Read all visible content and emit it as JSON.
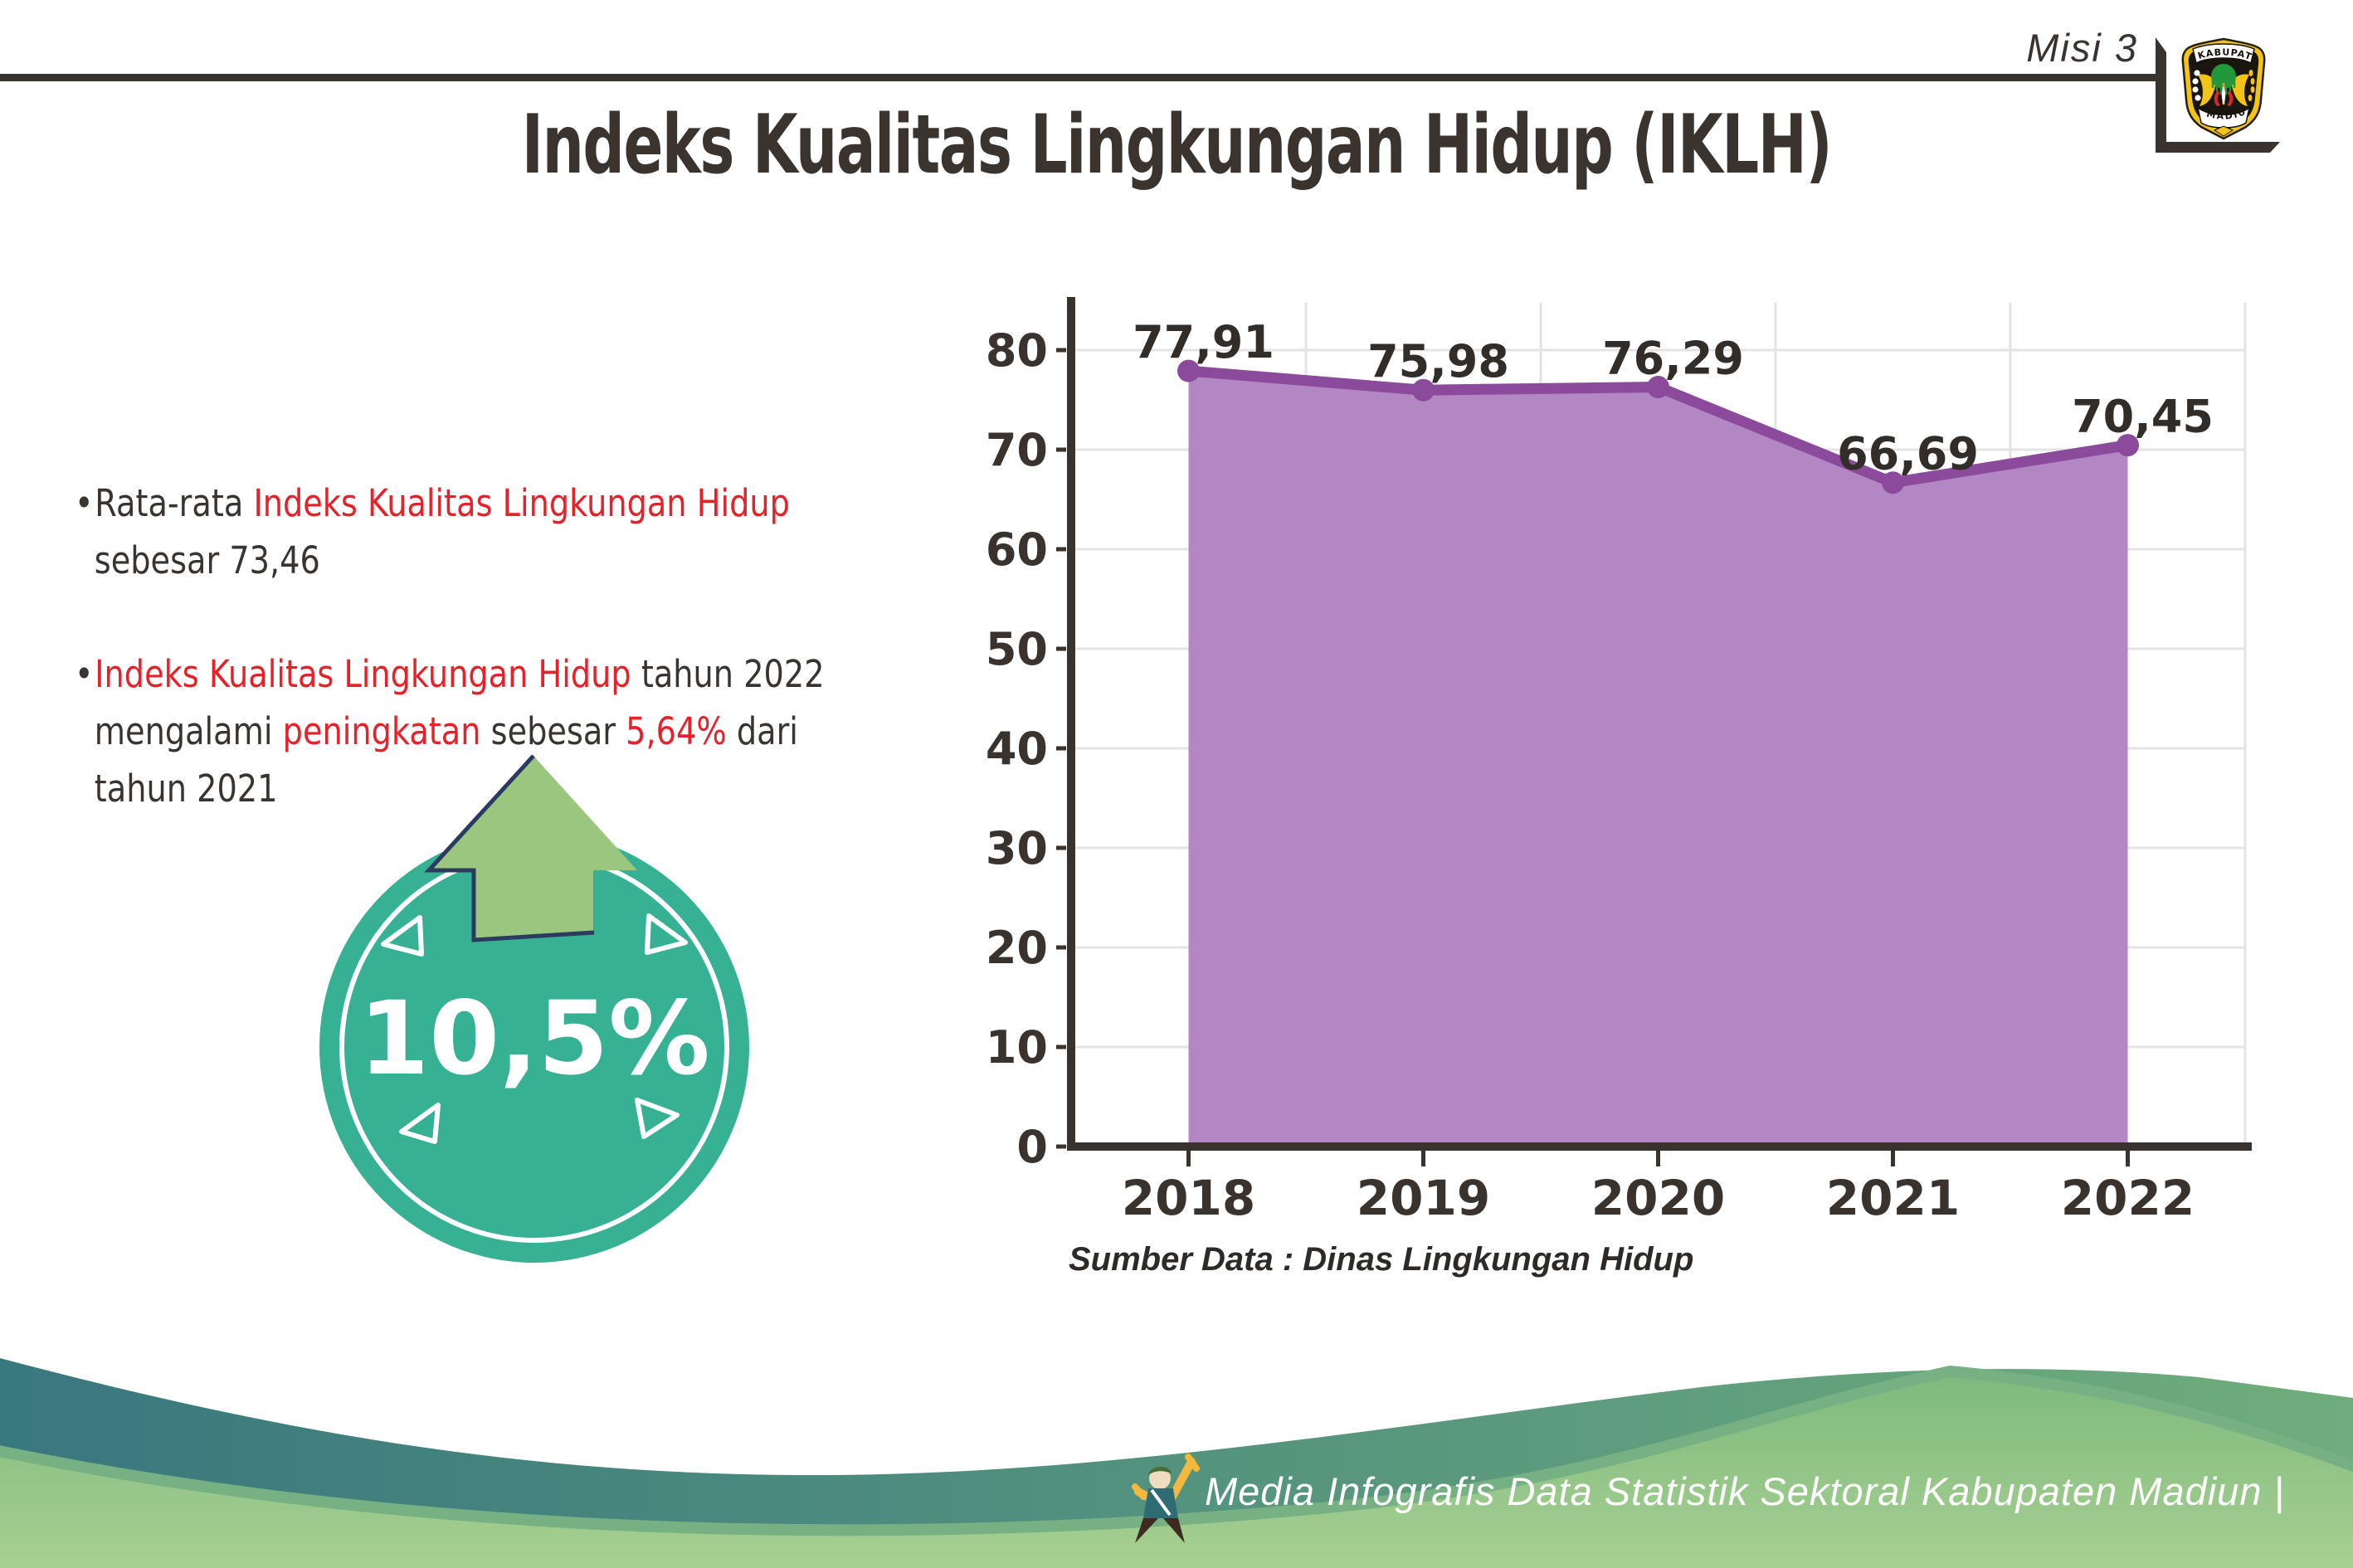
{
  "page": {
    "misi_label": "Misi 3"
  },
  "logo": {
    "top_text": "KABUPATEN",
    "bottom_text": "MADIUN"
  },
  "title": "Indeks Kualitas Lingkungan Hidup (IKLH)",
  "bullet_char": "•",
  "bullets": [
    {
      "lines": [
        [
          {
            "text": "Rata-rata ",
            "red": false
          },
          {
            "text": "Indeks Kualitas Lingkungan Hidup",
            "red": true
          }
        ],
        [
          {
            "text": "sebesar 73,46",
            "red": false
          }
        ]
      ]
    },
    {
      "lines": [
        [
          {
            "text": "Indeks Kualitas Lingkungan Hidup",
            "red": true
          },
          {
            "text": " tahun 2022",
            "red": false
          }
        ],
        [
          {
            "text": "mengalami ",
            "red": false
          },
          {
            "text": "peningkatan",
            "red": true
          },
          {
            "text": " sebesar ",
            "red": false
          },
          {
            "text": "5,64%",
            "red": true
          },
          {
            "text": " dari",
            "red": false
          }
        ],
        [
          {
            "text": "tahun 2021",
            "red": false
          }
        ]
      ]
    }
  ],
  "badge": {
    "value": "10,5%",
    "arrow": "up"
  },
  "chart_data": {
    "type": "area",
    "title": "",
    "categories": [
      "2018",
      "2019",
      "2020",
      "2021",
      "2022"
    ],
    "series": [
      {
        "name": "IKLH",
        "values": [
          77.91,
          75.98,
          76.29,
          66.69,
          70.45
        ]
      }
    ],
    "value_labels": [
      "77,91",
      "75,98",
      "76,29",
      "66,69",
      "70,45"
    ],
    "ylim": [
      0,
      80
    ],
    "yticks": [
      "0",
      "10",
      "20",
      "30",
      "40",
      "50",
      "60",
      "70",
      "80"
    ],
    "xlabel": "",
    "ylabel": "",
    "grid": true,
    "legend": "none",
    "line_color": "#8b4a9b",
    "fill_color": "#b287c2",
    "label_color": "#332d29"
  },
  "source_note": "Sumber Data : Dinas Lingkungan Hidup",
  "footer": {
    "credit": "Media Infografis Data Statistik Sektoral Kabupaten Madiun |"
  },
  "colors": {
    "red": "#e5212a",
    "dark_text": "#3a3431",
    "title": "#3a332e",
    "axis": "#3a322d",
    "grid": "#e4e2e2",
    "badge_teal": "#36b193",
    "arrow_green": "#9ac67f",
    "arrow_outline": "#2b3a5e",
    "footer_teal_start": "#38787f",
    "footer_teal_end": "#6fad7c",
    "footer_sage": "#76b083",
    "footer_green_top": "#7fba7d",
    "footer_green_bottom": "#a9d193",
    "emblem_yellow": "#f2c417",
    "emblem_black": "#1a150f",
    "emblem_green": "#22973c",
    "emblem_red": "#d8252b"
  }
}
